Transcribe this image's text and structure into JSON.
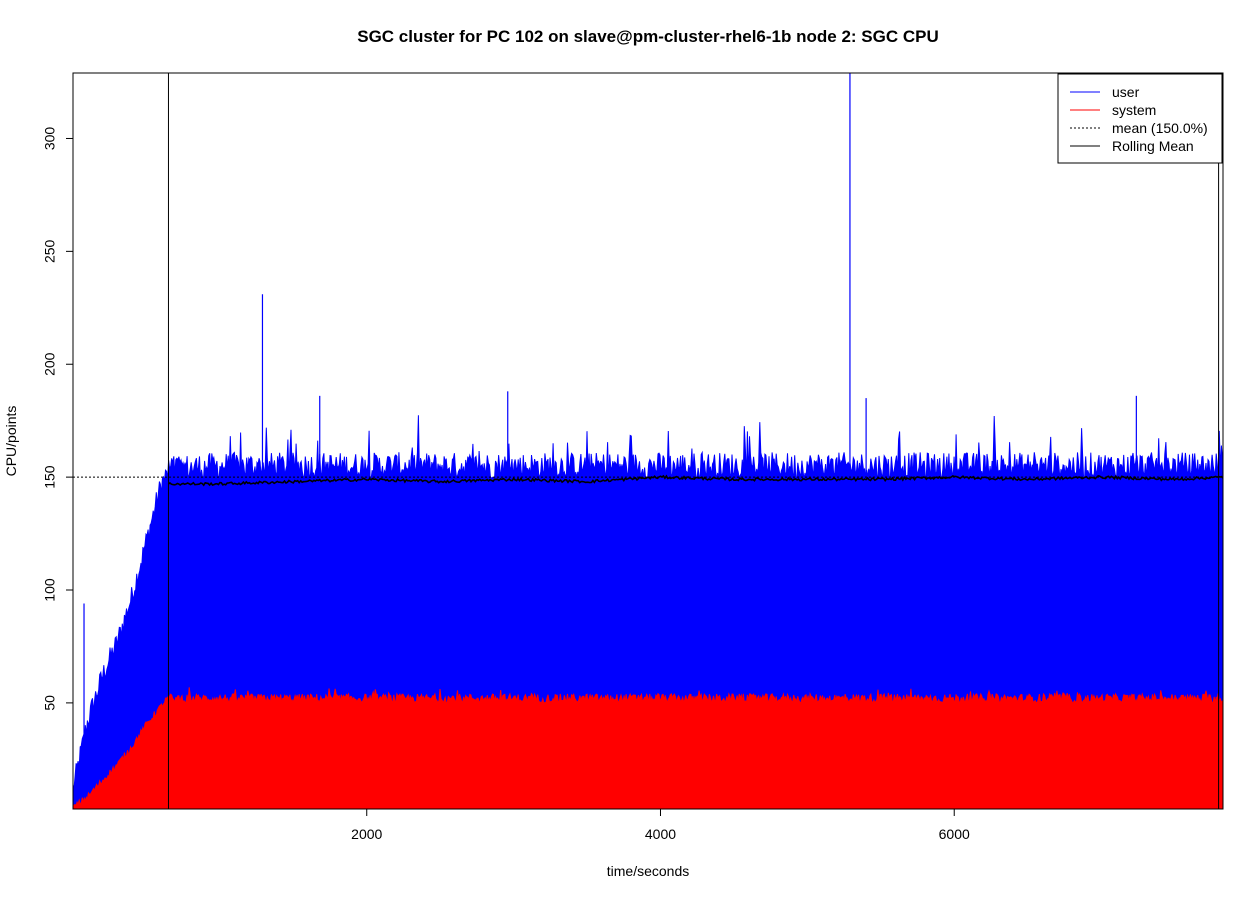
{
  "chart_data": {
    "type": "area",
    "title": "SGC cluster for PC 102 on slave@pm-cluster-rhel6-1b node 2: SGC CPU",
    "xlabel": "time/seconds",
    "ylabel": "CPU/points",
    "xlim": [
      0,
      7830
    ],
    "ylim": [
      3,
      329
    ],
    "x_ticks": [
      2000,
      4000,
      6000
    ],
    "y_ticks": [
      50,
      100,
      150,
      200,
      250,
      300
    ],
    "grid": false,
    "legend_position": "top-right",
    "series": [
      {
        "name": "user",
        "color": "#0000ff",
        "x": [
          0,
          100,
          200,
          300,
          400,
          500,
          600,
          650,
          700,
          1000,
          2000,
          3000,
          4000,
          5000,
          6000,
          7000,
          7830
        ],
        "values": [
          10,
          40,
          60,
          75,
          95,
          120,
          145,
          150,
          150,
          151,
          151,
          151,
          151,
          151,
          151,
          151,
          151
        ],
        "spikes": [
          {
            "x": 75,
            "value": 94
          },
          {
            "x": 1290,
            "value": 231
          },
          {
            "x": 1680,
            "value": 186
          },
          {
            "x": 2960,
            "value": 188
          },
          {
            "x": 5290,
            "value": 329
          },
          {
            "x": 5400,
            "value": 185
          },
          {
            "x": 7240,
            "value": 186
          }
        ]
      },
      {
        "name": "system",
        "color": "#ff0000",
        "x": [
          0,
          100,
          200,
          300,
          400,
          500,
          600,
          650,
          700,
          1000,
          2000,
          3000,
          4000,
          5000,
          6000,
          7000,
          7830
        ],
        "values": [
          3,
          8,
          15,
          22,
          30,
          40,
          48,
          52,
          52,
          52,
          52,
          52,
          52,
          52,
          52,
          52,
          52
        ]
      },
      {
        "name": "mean (150.0%)",
        "color": "#000000",
        "style": "dotted",
        "x": [
          0,
          7830
        ],
        "values": [
          150,
          150
        ]
      },
      {
        "name": "Rolling Mean",
        "color": "#000000",
        "style": "solid",
        "x": [
          650,
          1000,
          1500,
          2000,
          2500,
          3000,
          3500,
          4000,
          4500,
          5000,
          5500,
          6000,
          6500,
          7000,
          7500,
          7830
        ],
        "values": [
          147,
          147,
          148,
          149,
          148,
          149,
          148,
          150,
          149,
          149,
          149,
          150,
          149,
          150,
          149,
          150
        ]
      }
    ],
    "vertical_lines": [
      650,
      7800
    ]
  }
}
